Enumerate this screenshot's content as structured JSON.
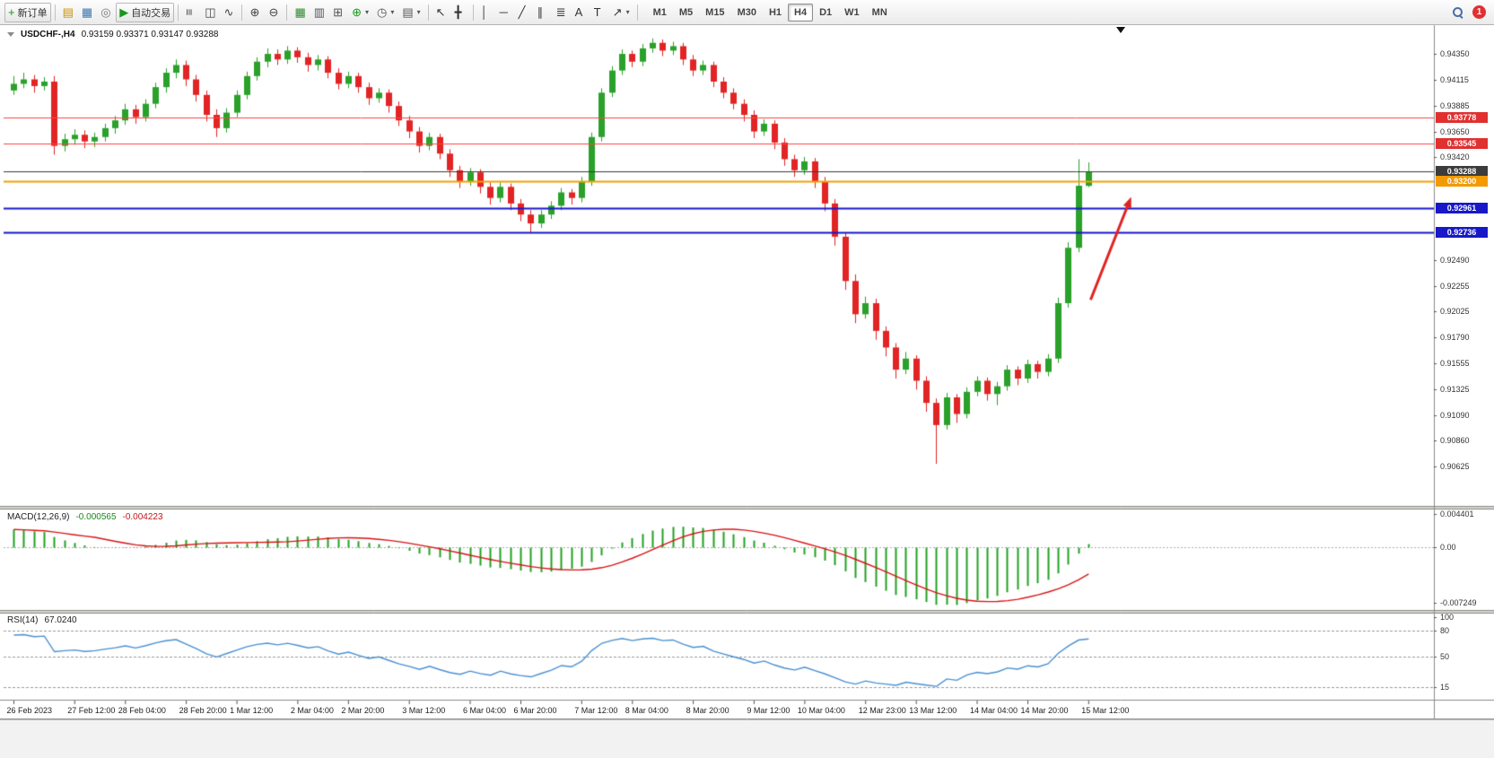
{
  "toolbar": {
    "new_order_label": "新订单",
    "autotrading_label": "自动交易",
    "notification_count": "1",
    "timeframes": [
      "M1",
      "M5",
      "M15",
      "M30",
      "H1",
      "H4",
      "D1",
      "W1",
      "MN"
    ],
    "active_timeframe": "H4",
    "buttons": [
      {
        "name": "new-order-button",
        "glyph": "+",
        "glyph_color": "#18991d",
        "label": "新订单"
      },
      {
        "sep": true
      },
      {
        "name": "market-watch-button",
        "glyph": "▤",
        "glyph_color": "#c79100"
      },
      {
        "name": "data-window-button",
        "glyph": "▦",
        "glyph_color": "#3a76b0"
      },
      {
        "name": "navigator-button",
        "glyph": "◎",
        "glyph_color": "#777777"
      },
      {
        "name": "autotrading-button",
        "glyph": "▶",
        "glyph_color": "#18991d",
        "label": "自动交易"
      },
      {
        "sep": true
      },
      {
        "name": "bar-chart-type-button",
        "glyph": "≡",
        "rot": true,
        "glyph_color": "#444444"
      },
      {
        "name": "candlestick-type-button",
        "glyph": "◫",
        "glyph_color": "#444444"
      },
      {
        "name": "line-chart-type-button",
        "glyph": "∿",
        "glyph_color": "#444444"
      },
      {
        "sep": true
      },
      {
        "name": "zoom-in-button",
        "glyph": "⊕",
        "glyph_color": "#444444"
      },
      {
        "name": "zoom-out-button",
        "glyph": "⊖",
        "glyph_color": "#444444"
      },
      {
        "sep": true
      },
      {
        "name": "tile-windows-button",
        "glyph": "▦",
        "glyph_color": "#2e8b2e"
      },
      {
        "name": "cascade-windows-button",
        "glyph": "▥",
        "glyph_color": "#555555"
      },
      {
        "name": "arrange-windows-button",
        "glyph": "⊞",
        "glyph_color": "#555555"
      },
      {
        "name": "indicators-button",
        "glyph": "⊕",
        "glyph_color": "#18991d",
        "caret": true
      },
      {
        "name": "periods-button",
        "glyph": "◷",
        "glyph_color": "#555555",
        "caret": true
      },
      {
        "name": "templates-button",
        "glyph": "▤",
        "glyph_color": "#555555",
        "caret": true
      },
      {
        "sep": true
      },
      {
        "name": "cursor-button",
        "glyph": "↖",
        "glyph_color": "#333333"
      },
      {
        "name": "crosshair-button",
        "glyph": "╋",
        "glyph_color": "#333333"
      },
      {
        "sep": true
      },
      {
        "name": "vertical-line-button",
        "glyph": "│",
        "glyph_color": "#333333"
      },
      {
        "name": "horizontal-line-button",
        "glyph": "─",
        "glyph_color": "#333333"
      },
      {
        "name": "trendline-button",
        "glyph": "╱",
        "glyph_color": "#333333"
      },
      {
        "name": "channel-button",
        "glyph": "∥",
        "glyph_color": "#333333"
      },
      {
        "name": "fibonacci-button",
        "glyph": "≣",
        "glyph_color": "#333333"
      },
      {
        "name": "text-button",
        "glyph": "A",
        "glyph_color": "#333333"
      },
      {
        "name": "label-button",
        "glyph": "T",
        "glyph_color": "#333333"
      },
      {
        "name": "shapes-button",
        "glyph": "↗",
        "glyph_color": "#333333",
        "caret": true
      },
      {
        "sep": true
      }
    ]
  },
  "chart": {
    "symbol_period": "USDCHF-,H4",
    "ohlc": "0.93159 0.93371 0.93147 0.93288"
  },
  "chart_data": {
    "type": "candlestick",
    "symbol": "USDCHF",
    "timeframe": "H4",
    "ohlc_display": {
      "open": "0.93159",
      "high": "0.93371",
      "low": "0.93147",
      "close": "0.93288"
    },
    "price_axis": {
      "range": [
        0.9027,
        0.9461
      ],
      "labels": [
        0.9435,
        0.94115,
        0.93885,
        0.9365,
        0.9342,
        0.9249,
        0.92255,
        0.92025,
        0.9179,
        0.91555,
        0.91325,
        0.9109,
        0.9086,
        0.90625
      ]
    },
    "candles": [
      [
        0.9402,
        0.9415,
        0.9398,
        0.9408
      ],
      [
        0.9408,
        0.9418,
        0.9404,
        0.9412
      ],
      [
        0.9412,
        0.9416,
        0.94,
        0.9406
      ],
      [
        0.9406,
        0.9414,
        0.9402,
        0.941
      ],
      [
        0.941,
        0.9415,
        0.9344,
        0.9352
      ],
      [
        0.9352,
        0.9363,
        0.9347,
        0.9358
      ],
      [
        0.9358,
        0.9367,
        0.9353,
        0.9362
      ],
      [
        0.9362,
        0.9366,
        0.935,
        0.9356
      ],
      [
        0.9356,
        0.9364,
        0.9351,
        0.936
      ],
      [
        0.936,
        0.9372,
        0.9356,
        0.9368
      ],
      [
        0.9368,
        0.9379,
        0.9363,
        0.9375
      ],
      [
        0.9375,
        0.939,
        0.9371,
        0.9385
      ],
      [
        0.9385,
        0.9389,
        0.9372,
        0.9378
      ],
      [
        0.9378,
        0.9394,
        0.9374,
        0.939
      ],
      [
        0.939,
        0.9409,
        0.9386,
        0.9405
      ],
      [
        0.9405,
        0.9422,
        0.94,
        0.9418
      ],
      [
        0.9418,
        0.943,
        0.9413,
        0.9425
      ],
      [
        0.9425,
        0.9429,
        0.9406,
        0.9412
      ],
      [
        0.9412,
        0.9416,
        0.9392,
        0.9398
      ],
      [
        0.9398,
        0.9402,
        0.9374,
        0.938
      ],
      [
        0.938,
        0.9385,
        0.936,
        0.9368
      ],
      [
        0.9368,
        0.9386,
        0.9364,
        0.9382
      ],
      [
        0.9382,
        0.9402,
        0.9378,
        0.9398
      ],
      [
        0.9398,
        0.9419,
        0.9394,
        0.9415
      ],
      [
        0.9415,
        0.9432,
        0.9411,
        0.9428
      ],
      [
        0.9428,
        0.944,
        0.9423,
        0.9435
      ],
      [
        0.9435,
        0.9439,
        0.9425,
        0.943
      ],
      [
        0.943,
        0.9442,
        0.9426,
        0.9438
      ],
      [
        0.9438,
        0.9441,
        0.9427,
        0.9432
      ],
      [
        0.9432,
        0.9436,
        0.9419,
        0.9425
      ],
      [
        0.9425,
        0.9434,
        0.942,
        0.943
      ],
      [
        0.943,
        0.9433,
        0.9413,
        0.9418
      ],
      [
        0.9418,
        0.9422,
        0.9403,
        0.9408
      ],
      [
        0.9408,
        0.9419,
        0.9404,
        0.9415
      ],
      [
        0.9415,
        0.9418,
        0.94,
        0.9405
      ],
      [
        0.9405,
        0.9409,
        0.9389,
        0.9395
      ],
      [
        0.9395,
        0.9404,
        0.9391,
        0.94
      ],
      [
        0.94,
        0.9403,
        0.9382,
        0.9388
      ],
      [
        0.9388,
        0.9392,
        0.937,
        0.9375
      ],
      [
        0.9375,
        0.9379,
        0.9359,
        0.9365
      ],
      [
        0.9365,
        0.9369,
        0.9346,
        0.9352
      ],
      [
        0.9352,
        0.9364,
        0.9348,
        0.936
      ],
      [
        0.936,
        0.9363,
        0.934,
        0.9345
      ],
      [
        0.9345,
        0.9349,
        0.9324,
        0.933
      ],
      [
        0.933,
        0.9334,
        0.9314,
        0.932
      ],
      [
        0.932,
        0.9332,
        0.9316,
        0.9328
      ],
      [
        0.9328,
        0.9331,
        0.9309,
        0.9315
      ],
      [
        0.9315,
        0.9319,
        0.9299,
        0.9305
      ],
      [
        0.9305,
        0.9319,
        0.9301,
        0.9315
      ],
      [
        0.9315,
        0.9318,
        0.9294,
        0.93
      ],
      [
        0.93,
        0.9304,
        0.9284,
        0.929
      ],
      [
        0.929,
        0.9294,
        0.9274,
        0.9282
      ],
      [
        0.9282,
        0.9294,
        0.9278,
        0.929
      ],
      [
        0.929,
        0.9302,
        0.9286,
        0.9298
      ],
      [
        0.9298,
        0.9314,
        0.9294,
        0.931
      ],
      [
        0.931,
        0.9313,
        0.9299,
        0.9305
      ],
      [
        0.9305,
        0.9324,
        0.9301,
        0.932
      ],
      [
        0.932,
        0.9364,
        0.9316,
        0.936
      ],
      [
        0.936,
        0.9404,
        0.9356,
        0.94
      ],
      [
        0.94,
        0.9424,
        0.9396,
        0.942
      ],
      [
        0.942,
        0.9439,
        0.9416,
        0.9435
      ],
      [
        0.9435,
        0.9438,
        0.9423,
        0.9428
      ],
      [
        0.9428,
        0.9444,
        0.9424,
        0.944
      ],
      [
        0.944,
        0.9449,
        0.9436,
        0.9445
      ],
      [
        0.9445,
        0.9448,
        0.9433,
        0.9438
      ],
      [
        0.9438,
        0.9446,
        0.9434,
        0.9442
      ],
      [
        0.9442,
        0.9445,
        0.9425,
        0.943
      ],
      [
        0.943,
        0.9434,
        0.9415,
        0.942
      ],
      [
        0.942,
        0.9429,
        0.9416,
        0.9425
      ],
      [
        0.9425,
        0.9428,
        0.9405,
        0.941
      ],
      [
        0.941,
        0.9414,
        0.9395,
        0.94
      ],
      [
        0.94,
        0.9404,
        0.9385,
        0.939
      ],
      [
        0.939,
        0.9394,
        0.9374,
        0.938
      ],
      [
        0.938,
        0.9384,
        0.9359,
        0.9365
      ],
      [
        0.9365,
        0.9376,
        0.9361,
        0.9372
      ],
      [
        0.9372,
        0.9375,
        0.9349,
        0.9355
      ],
      [
        0.9355,
        0.9359,
        0.9334,
        0.934
      ],
      [
        0.934,
        0.9344,
        0.9324,
        0.933
      ],
      [
        0.933,
        0.9342,
        0.9326,
        0.9338
      ],
      [
        0.9338,
        0.9341,
        0.9314,
        0.932
      ],
      [
        0.932,
        0.9324,
        0.9293,
        0.93
      ],
      [
        0.93,
        0.9304,
        0.9262,
        0.927
      ],
      [
        0.927,
        0.9274,
        0.9222,
        0.923
      ],
      [
        0.923,
        0.9236,
        0.9192,
        0.92
      ],
      [
        0.92,
        0.9216,
        0.9196,
        0.921
      ],
      [
        0.921,
        0.9214,
        0.9177,
        0.9185
      ],
      [
        0.9185,
        0.9189,
        0.9162,
        0.917
      ],
      [
        0.917,
        0.9174,
        0.9142,
        0.915
      ],
      [
        0.915,
        0.9166,
        0.9146,
        0.916
      ],
      [
        0.916,
        0.9163,
        0.9132,
        0.914
      ],
      [
        0.914,
        0.9144,
        0.9112,
        0.912
      ],
      [
        0.912,
        0.9124,
        0.9065,
        0.91
      ],
      [
        0.91,
        0.9129,
        0.9096,
        0.9125
      ],
      [
        0.9125,
        0.9128,
        0.9102,
        0.911
      ],
      [
        0.911,
        0.9134,
        0.9106,
        0.913
      ],
      [
        0.913,
        0.9144,
        0.9126,
        0.914
      ],
      [
        0.914,
        0.9143,
        0.9122,
        0.9128
      ],
      [
        0.9128,
        0.9139,
        0.9118,
        0.9135
      ],
      [
        0.9135,
        0.9154,
        0.9131,
        0.915
      ],
      [
        0.915,
        0.9153,
        0.9136,
        0.9142
      ],
      [
        0.9142,
        0.9159,
        0.9138,
        0.9155
      ],
      [
        0.9155,
        0.9158,
        0.9142,
        0.9148
      ],
      [
        0.9148,
        0.9164,
        0.9144,
        0.916
      ],
      [
        0.916,
        0.9215,
        0.9156,
        0.921
      ],
      [
        0.921,
        0.9265,
        0.9206,
        0.926
      ],
      [
        0.926,
        0.934,
        0.9256,
        0.9316
      ],
      [
        0.93159,
        0.93371,
        0.93147,
        0.93288
      ]
    ],
    "hlines": [
      {
        "price": 0.93778,
        "color": "#ff4242",
        "width": 1,
        "tag": "0.93778",
        "tag_bg": "#e03030"
      },
      {
        "price": 0.93545,
        "color": "#ff4242",
        "width": 1,
        "tag": "0.93545",
        "tag_bg": "#e03030"
      },
      {
        "price": 0.93288,
        "color": "#3a3a3a",
        "width": 1,
        "tag": "0.93288",
        "tag_bg": "#3c3c3c",
        "current": true
      },
      {
        "price": 0.932,
        "color": "#f6a000",
        "width": 2,
        "tag": "0.93200",
        "tag_bg": "#f29a00"
      },
      {
        "price": 0.92961,
        "color": "#1818c8",
        "width": 2,
        "tag": "0.92961",
        "tag_bg": "#1818c8"
      },
      {
        "price": 0.92736,
        "color": "#1818c8",
        "width": 2,
        "tag": "0.92736",
        "tag_bg": "#1818c8"
      }
    ],
    "trend_arrow": {
      "from_index": 106.5,
      "from_price": 0.9213,
      "to_index": 110.5,
      "to_price": 0.9306,
      "color": "#e02222"
    },
    "macd": {
      "label": "MACD(12,26,9)",
      "value_main": "-0.000565",
      "value_signal": "-0.004223",
      "params": {
        "fast": 12,
        "slow": 26,
        "signal": 9
      },
      "range": [
        -0.007249,
        0.004401
      ],
      "axis_labels": [
        {
          "text": "0.004401",
          "value": 0.004401
        },
        {
          "text": "0.00",
          "value": 0
        },
        {
          "text": "-0.007249",
          "value": -0.007249
        }
      ],
      "histogram_color": "#22a022",
      "signal_color": "#d81414"
    },
    "rsi": {
      "label": "RSI(14)",
      "value": "67.0240",
      "period": 14,
      "range": [
        0,
        100
      ],
      "levels": [
        80,
        50,
        15
      ],
      "axis_labels": [
        "100",
        "80",
        "50",
        "15"
      ],
      "line_color": "#4a90d2"
    },
    "time_axis": {
      "labels": [
        "26 Feb 2023",
        "27 Feb 12:00",
        "28 Feb 04:00",
        "28 Feb 20:00",
        "1 Mar 12:00",
        "2 Mar 04:00",
        "2 Mar 20:00",
        "3 Mar 12:00",
        "6 Mar 04:00",
        "6 Mar 20:00",
        "7 Mar 12:00",
        "8 Mar 04:00",
        "8 Mar 20:00",
        "9 Mar 12:00",
        "10 Mar 04:00",
        "12 Mar 23:00",
        "13 Mar 12:00",
        "14 Mar 04:00",
        "14 Mar 20:00",
        "15 Mar 12:00"
      ]
    },
    "colors": {
      "bull": "#2aa12a",
      "bear": "#e22424",
      "background": "#ffffff"
    }
  }
}
